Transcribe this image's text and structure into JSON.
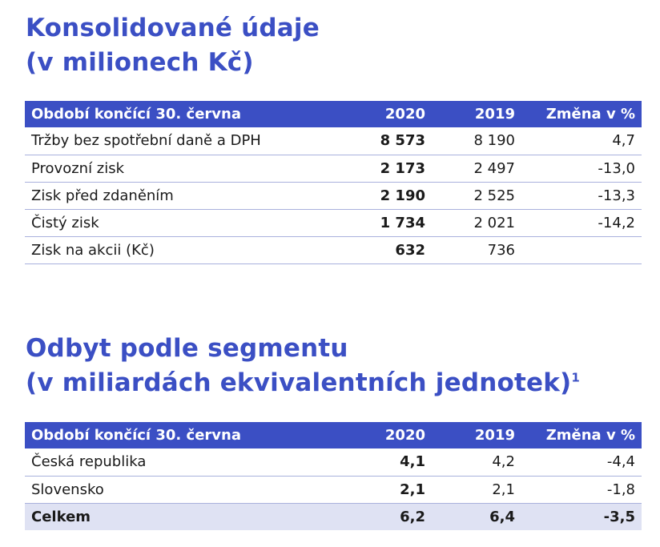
{
  "section1": {
    "title_line1": "Konsolidované údaje",
    "title_line2": "(v milionech Kč)",
    "headers": [
      "Období končící 30. června",
      "2020",
      "2019",
      "Změna v %"
    ],
    "rows": [
      {
        "label": "Tržby bez spotřební daně a DPH",
        "v2020": "8 573",
        "v2019": "8 190",
        "change": "4,7"
      },
      {
        "label": "Provozní zisk",
        "v2020": "2 173",
        "v2019": "2 497",
        "change": "-13,0"
      },
      {
        "label": "Zisk před zdaněním",
        "v2020": "2 190",
        "v2019": "2 525",
        "change": "-13,3"
      },
      {
        "label": "Čistý zisk",
        "v2020": "1 734",
        "v2019": "2 021",
        "change": "-14,2"
      },
      {
        "label": "Zisk na akcii (Kč)",
        "v2020": "632",
        "v2019": "736",
        "change": ""
      }
    ]
  },
  "section2": {
    "title_line1": "Odbyt podle segmentu",
    "title_line2": "(v miliardách ekvivalentních jednotek)",
    "footnote_mark": "1",
    "headers": [
      "Období končící 30. června",
      "2020",
      "2019",
      "Změna v %"
    ],
    "rows": [
      {
        "label": "Česká republika",
        "v2020": "4,1",
        "v2019": "4,2",
        "change": "-4,4"
      },
      {
        "label": "Slovensko",
        "v2020": "2,1",
        "v2019": "2,1",
        "change": "-1,8"
      }
    ],
    "total": {
      "label": "Celkem",
      "v2020": "6,2",
      "v2019": "6,4",
      "change": "-3,5"
    }
  },
  "colors": {
    "accent": "#3b4fc4",
    "total_row_bg": "#dfe2f3",
    "row_border": "#a9b1dd"
  }
}
